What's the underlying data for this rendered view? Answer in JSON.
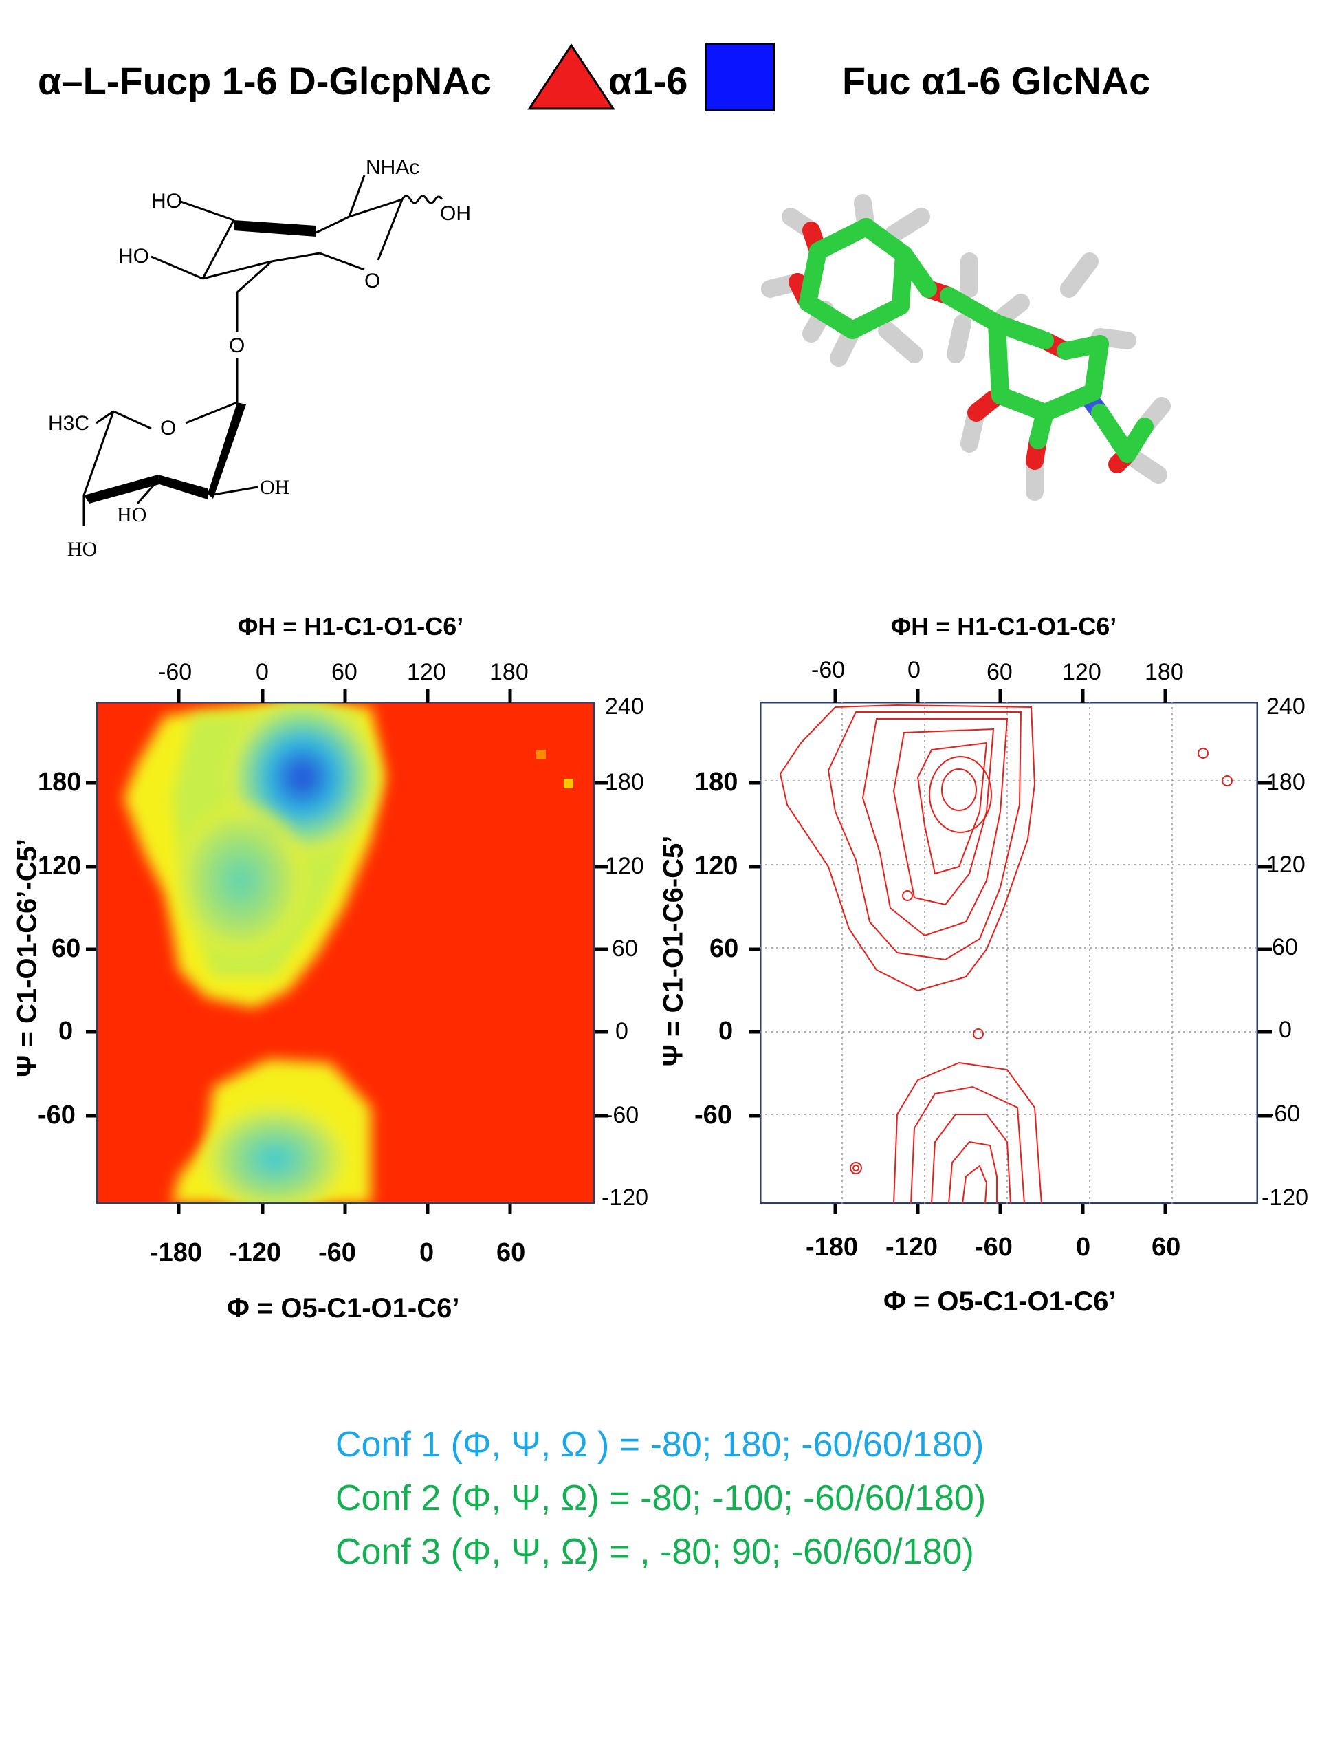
{
  "header": {
    "title_left": "α–L-Fucp 1-6 D-GlcpNAc",
    "symbol_label": "α1-6",
    "title_right": "Fuc α1-6 GlcNAc",
    "triangle_color": "#ee1c1c",
    "square_color": "#0a14ff"
  },
  "structure": {
    "labels": {
      "nhac": "NHAc",
      "ho1": "HO",
      "ho2": "HO",
      "oh1": "OH",
      "o_ring1": "O",
      "o_link": "O",
      "h3c": "H3C",
      "o_ring2": "O",
      "oh2": "OH",
      "ho3": "HO",
      "ho4": "HO"
    }
  },
  "plots": {
    "left": {
      "top_title": "ΦH = H1-C1-O1-C6’",
      "top_ticks": [
        "-60",
        "0",
        "60",
        "120",
        "180"
      ],
      "right_ticks": [
        "240",
        "180",
        "120",
        "60",
        "0",
        "-60",
        "-120"
      ],
      "left_ticks": [
        "180",
        "120",
        "60",
        "0",
        "-60"
      ],
      "bottom_ticks": [
        "-180",
        "-120",
        "-60",
        "0",
        "60"
      ],
      "xlabel": "Φ = O5-C1-O1-C6’",
      "ylabel": "Ψ = C1-O1-C6’-C5’"
    },
    "right": {
      "top_title": "ΦH = H1-C1-O1-C6’",
      "top_ticks": [
        "-60",
        "0",
        "60",
        "120",
        "180"
      ],
      "right_ticks": [
        "240",
        "180",
        "120",
        "60",
        "0",
        "-60",
        "-120"
      ],
      "left_ticks": [
        "180",
        "120",
        "60",
        "0",
        "-60"
      ],
      "bottom_ticks": [
        "-180",
        "-120",
        "-60",
        "0",
        "60"
      ],
      "xlabel": "Φ = O5-C1-O1-C6’",
      "ylabel": "Ψ = C1-O1-C6-C5’"
    }
  },
  "confs": [
    {
      "label": "Conf 1 (Φ, Ψ, Ω ) = -80;   180; -60/60/180)",
      "color": "#1aa7e8"
    },
    {
      "label": "Conf 2 (Φ, Ψ, Ω) =   -80; -100; -60/60/180)",
      "color": "#12b050"
    },
    {
      "label": "Conf 3 (Φ, Ψ, Ω) = , -80;    90; -60/60/180)",
      "color": "#12b050"
    }
  ]
}
